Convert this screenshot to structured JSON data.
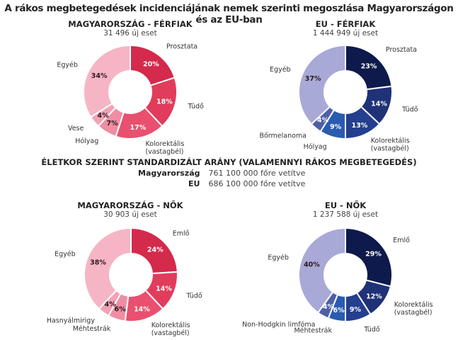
{
  "title": "A rákos megbetegedések incidenciájának nemek szerinti megoszlása Magyarországon és az EU-ban",
  "asr": {
    "heading": "ÉLETKOR SZERINT STANDARDIZÁLT ARÁNY (VALAMENNYI RÁKOS MEGBETEGEDÉS)",
    "rows": [
      {
        "key": "Magyarország",
        "value": "761 100 000 főre vetítve"
      },
      {
        "key": "EU",
        "value": "686 100 000 főre vetítve"
      }
    ]
  },
  "chart_data": [
    {
      "type": "pie",
      "title": "MAGYARORSZÁG - FÉRFIAK",
      "subtitle": "31 496 új eset",
      "slices": [
        {
          "label": [
            "Prosztata"
          ],
          "value": 20,
          "pct": "20%",
          "color": "#d42a4b",
          "dark": false
        },
        {
          "label": [
            "Tüdő"
          ],
          "value": 18,
          "pct": "18%",
          "color": "#e13c5b",
          "dark": false
        },
        {
          "label": [
            "Kolorektális",
            "(vastagbél)"
          ],
          "value": 17,
          "pct": "17%",
          "color": "#e9506f",
          "dark": false
        },
        {
          "label": [
            "Hólyag"
          ],
          "value": 7,
          "pct": "7%",
          "color": "#ef8ea3",
          "dark": true
        },
        {
          "label": [
            "Vese"
          ],
          "value": 4,
          "pct": "4%",
          "color": "#f3a2b4",
          "dark": true
        },
        {
          "label": [
            "Egyéb"
          ],
          "value": 34,
          "pct": "34%",
          "color": "#f6b5c4",
          "dark": true
        }
      ]
    },
    {
      "type": "pie",
      "title": "EU - FÉRFIAK",
      "subtitle": "1 444 949 új eset",
      "slices": [
        {
          "label": [
            "Prosztata"
          ],
          "value": 23,
          "pct": "23%",
          "color": "#0e1a4b",
          "dark": false
        },
        {
          "label": [
            "Tüdő"
          ],
          "value": 14,
          "pct": "14%",
          "color": "#1f3277",
          "dark": false
        },
        {
          "label": [
            "Kolorektális",
            "(vastagbél)"
          ],
          "value": 13,
          "pct": "13%",
          "color": "#243f8e",
          "dark": false
        },
        {
          "label": [
            "Hólyag"
          ],
          "value": 9,
          "pct": "9%",
          "color": "#2a5bb0",
          "dark": false
        },
        {
          "label": [
            "Bőrmelanoma"
          ],
          "value": 4,
          "pct": "4%",
          "color": "#4f60a8",
          "dark": false
        },
        {
          "label": [
            "Egyéb"
          ],
          "value": 37,
          "pct": "37%",
          "color": "#a8a9d6",
          "dark": true
        }
      ]
    },
    {
      "type": "pie",
      "title": "MAGYARORSZÁG - NŐK",
      "subtitle": "30 903 új eset",
      "slices": [
        {
          "label": [
            "Emlő"
          ],
          "value": 24,
          "pct": "24%",
          "color": "#d42a4b",
          "dark": false
        },
        {
          "label": [
            "Tüdő"
          ],
          "value": 14,
          "pct": "14%",
          "color": "#e13c5b",
          "dark": false
        },
        {
          "label": [
            "Kolorektális",
            "(vastagbél)"
          ],
          "value": 14,
          "pct": "14%",
          "color": "#e9506f",
          "dark": false
        },
        {
          "label": [
            "Méhtestrák"
          ],
          "value": 6,
          "pct": "6%",
          "color": "#ef8ea3",
          "dark": true
        },
        {
          "label": [
            "Hasnyálmirigy"
          ],
          "value": 4,
          "pct": "4%",
          "color": "#f3a2b4",
          "dark": true
        },
        {
          "label": [
            "Egyéb"
          ],
          "value": 38,
          "pct": "38%",
          "color": "#f6b5c4",
          "dark": true
        }
      ]
    },
    {
      "type": "pie",
      "title": "EU - NŐK",
      "subtitle": "1 237 588 új eset",
      "slices": [
        {
          "label": [
            "Emlő"
          ],
          "value": 29,
          "pct": "29%",
          "color": "#0e1a4b",
          "dark": false
        },
        {
          "label": [
            "Kolorektális",
            "(vastagbél)"
          ],
          "value": 12,
          "pct": "12%",
          "color": "#1f3277",
          "dark": false
        },
        {
          "label": [
            "Tüdő"
          ],
          "value": 9,
          "pct": "9%",
          "color": "#243f8e",
          "dark": false
        },
        {
          "label": [
            "Méhtestrák"
          ],
          "value": 6,
          "pct": "6%",
          "color": "#2a5bb0",
          "dark": false
        },
        {
          "label": [
            "Non-Hodgkin limfóma"
          ],
          "value": 4,
          "pct": "4%",
          "color": "#4f60a8",
          "dark": false
        },
        {
          "label": [
            "Egyéb"
          ],
          "value": 40,
          "pct": "40%",
          "color": "#a8a9d6",
          "dark": true
        }
      ]
    }
  ]
}
